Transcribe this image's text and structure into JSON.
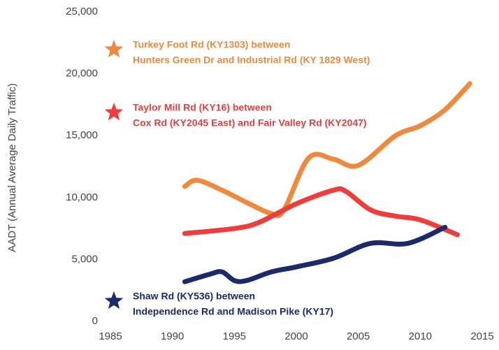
{
  "chart_data": {
    "type": "line",
    "ylabel": "AADT (Annual Average Daily Traffic)",
    "xlim": [
      1985,
      2015
    ],
    "xticks": [
      1985,
      1990,
      1995,
      2000,
      2005,
      2010,
      2015
    ],
    "ylim": [
      0,
      25000
    ],
    "yticks": [
      0,
      {
        "value": 5000,
        "label": "5,000"
      },
      {
        "value": 10000,
        "label": "10,000"
      },
      {
        "value": 15000,
        "label": "15,000"
      },
      {
        "value": 20000,
        "label": "20,000"
      },
      {
        "value": 25000,
        "label": "25,000"
      }
    ],
    "series": [
      {
        "name": [
          "Turkey Foot Rd (KY1303) between",
          "Hunters Green Dr and Industrial Rd (KY 1829 West)"
        ],
        "color": "#ef8a3c",
        "x": [
          1991,
          1992,
          1994,
          1996,
          1998,
          1999,
          2001,
          2003,
          2005,
          2008,
          2010,
          2012,
          2014
        ],
        "values": [
          10900,
          11400,
          10600,
          9600,
          8700,
          9000,
          13200,
          13100,
          12600,
          15000,
          15800,
          17100,
          19200
        ]
      },
      {
        "name": [
          "Taylor Mill Rd (KY16) between",
          "Cox Rd (KY2045 East) and Fair Valley Rd (KY2047)"
        ],
        "color": "#f23c3c",
        "x": [
          1991,
          1995,
          1997,
          2000,
          2003,
          2004,
          2006,
          2008,
          2010,
          2013
        ],
        "values": [
          7100,
          7500,
          8000,
          9500,
          10600,
          10500,
          9000,
          8500,
          8200,
          7000
        ]
      },
      {
        "name": [
          "Shaw Rd (KY536) between",
          "Independence Rd and Madison Pike (KY17)"
        ],
        "color": "#1b2a6b",
        "x": [
          1991,
          1993,
          1994,
          1995,
          1996,
          1998,
          2000,
          2003,
          2006,
          2009,
          2012
        ],
        "values": [
          3200,
          3800,
          4000,
          3300,
          3300,
          4000,
          4400,
          5100,
          6300,
          6300,
          7600
        ]
      }
    ]
  }
}
